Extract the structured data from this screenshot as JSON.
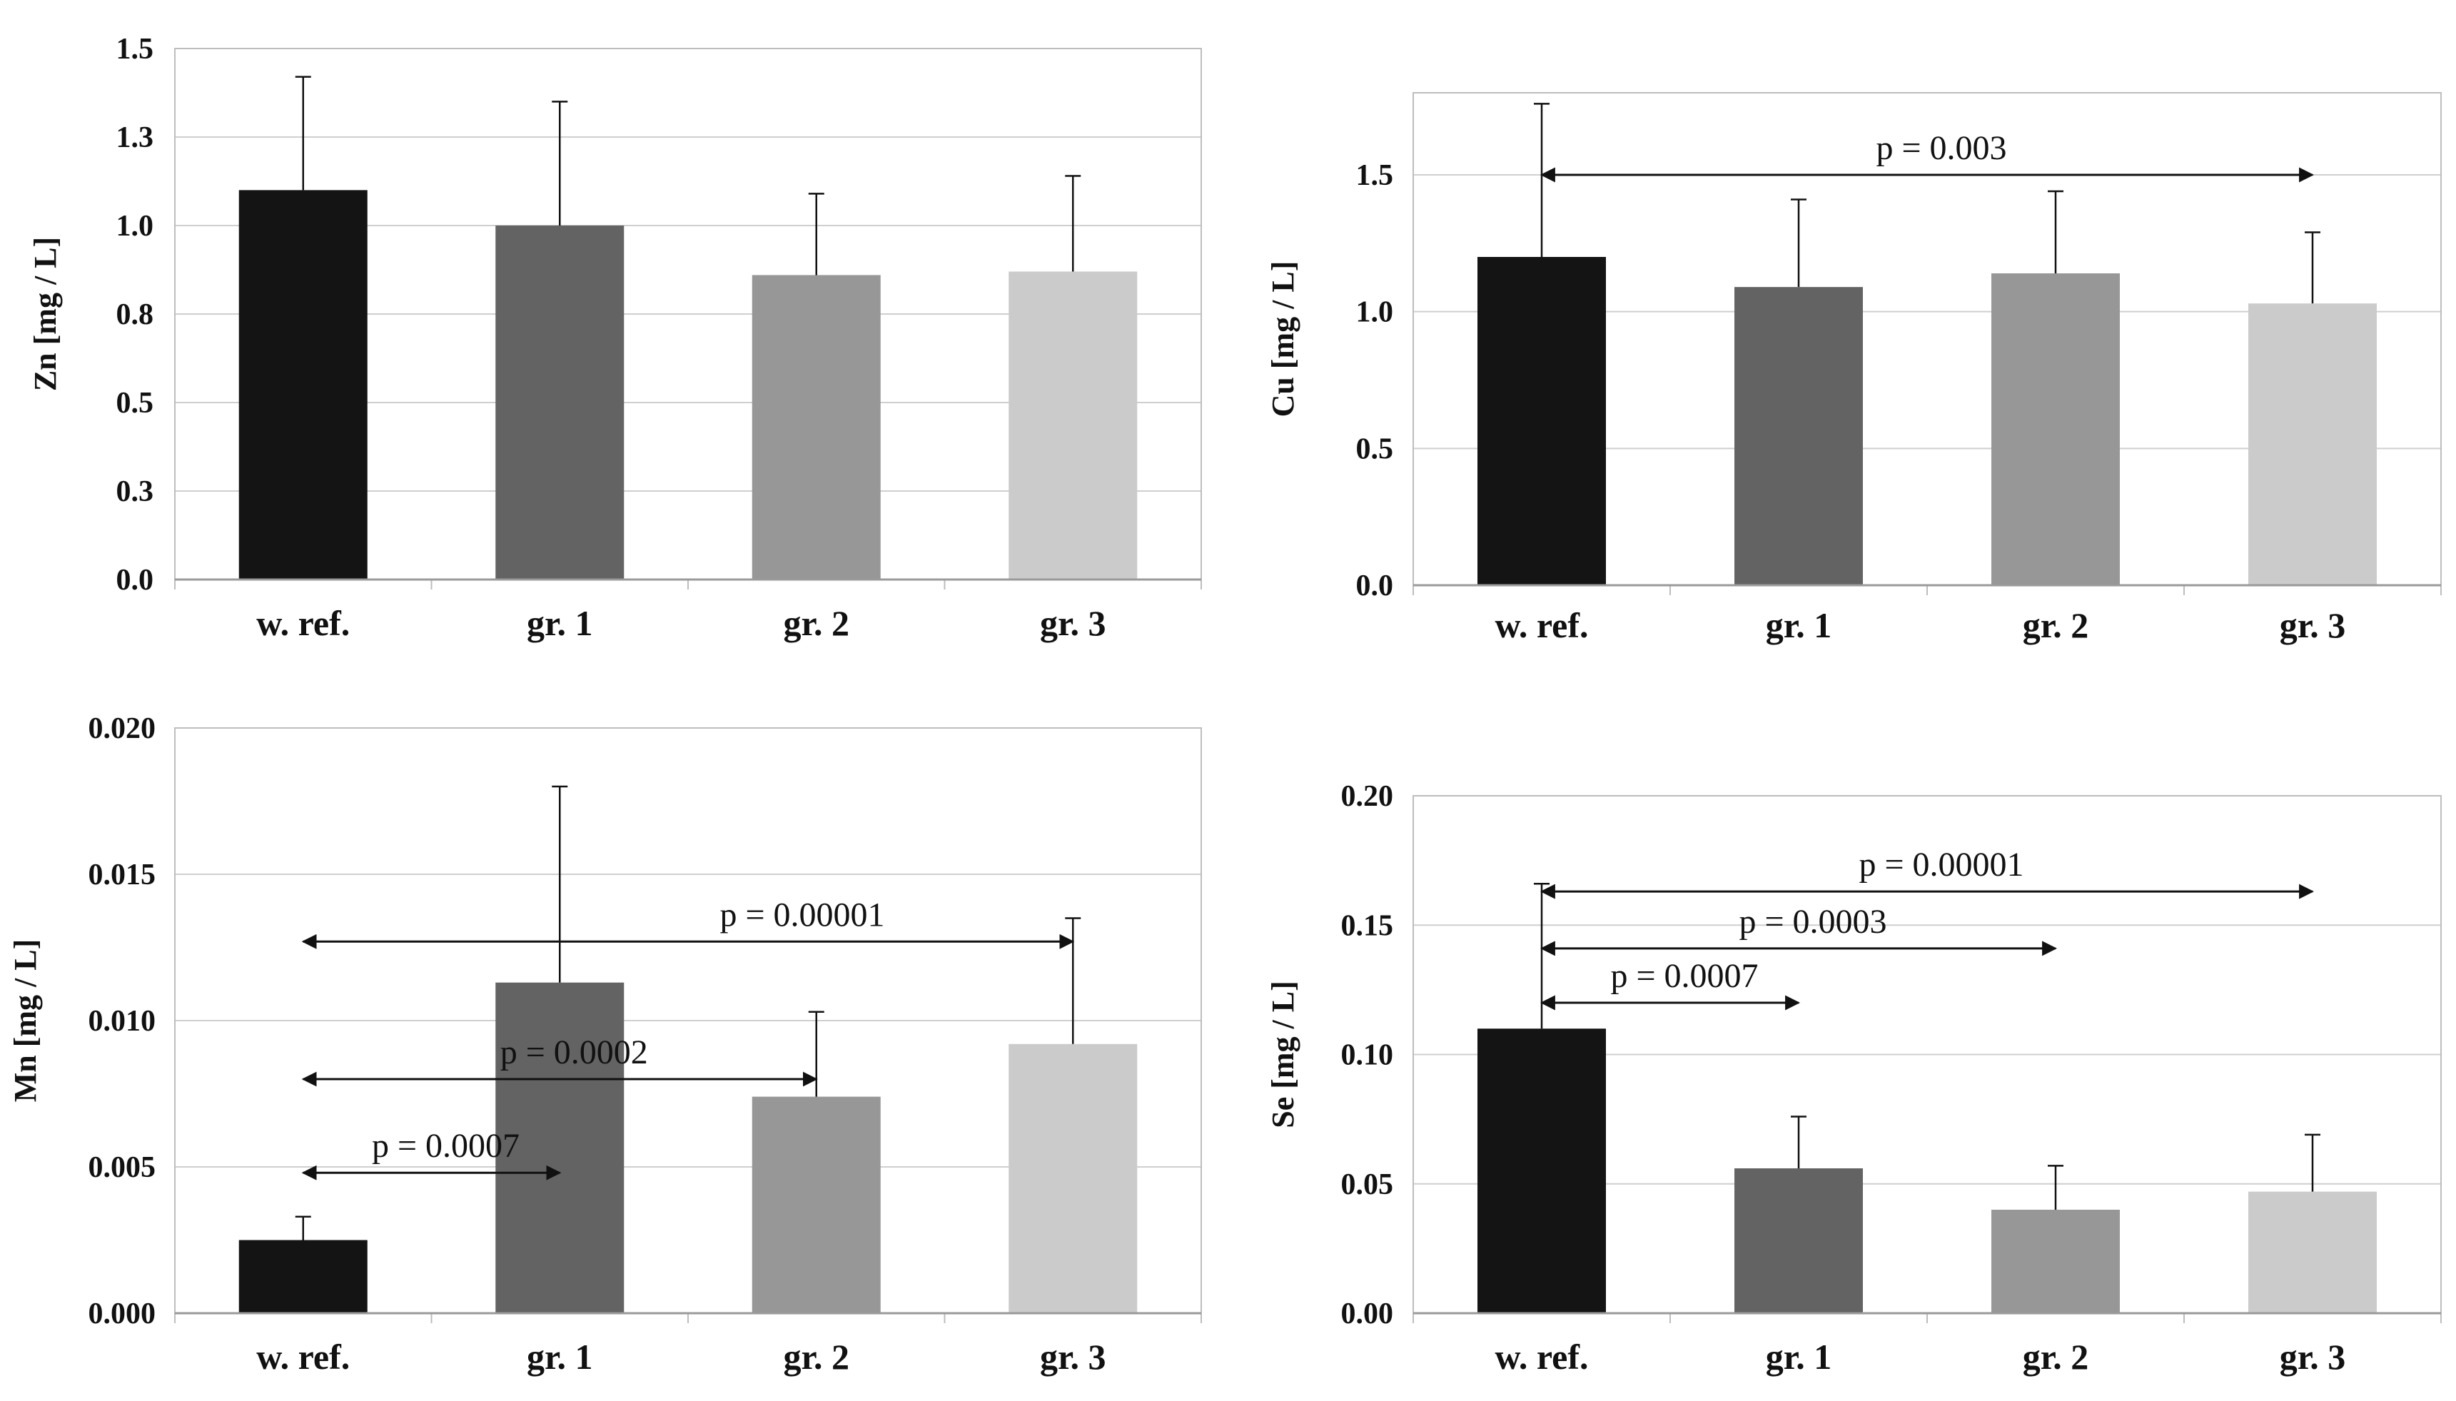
{
  "chart_data": [
    {
      "type": "bar",
      "id": "zn",
      "ylabel": "Zn [mg / L]",
      "categories": [
        "w. ref.",
        "gr. 1",
        "gr. 2",
        "gr. 3"
      ],
      "values": [
        1.1,
        1.0,
        0.86,
        0.87
      ],
      "error_upper": [
        1.42,
        1.35,
        1.09,
        1.14
      ],
      "ylim": [
        0,
        1.5
      ],
      "yticks": [
        0.0,
        0.25,
        0.5,
        0.75,
        1.0,
        1.25,
        1.5
      ],
      "ytick_labels": [
        "0.0",
        "0.3",
        "0.5",
        "0.8",
        "1.0",
        "1.3",
        "1.5"
      ],
      "grid": true,
      "colors": [
        "#141414",
        "#636363",
        "#979797",
        "#cbcbcb"
      ],
      "annotations": []
    },
    {
      "type": "bar",
      "id": "cu",
      "ylabel": "Cu [mg / L]",
      "categories": [
        "w. ref.",
        "gr. 1",
        "gr. 2",
        "gr. 3"
      ],
      "values": [
        1.2,
        1.09,
        1.14,
        1.03
      ],
      "error_upper": [
        1.76,
        1.41,
        1.44,
        1.29
      ],
      "ylim": [
        0,
        1.8
      ],
      "yticks": [
        0.0,
        0.5,
        1.0,
        1.5
      ],
      "ytick_labels": [
        "0.0",
        "0.5",
        "1.0",
        "1.5"
      ],
      "grid": true,
      "colors": [
        "#141414",
        "#636363",
        "#979797",
        "#cbcbcb"
      ],
      "annotations": [
        {
          "label": "p = 0.003",
          "from": 0,
          "to": 3,
          "y": 1.5
        }
      ]
    },
    {
      "type": "bar",
      "id": "mn",
      "ylabel": "Mn [mg / L]",
      "categories": [
        "w. ref.",
        "gr. 1",
        "gr. 2",
        "gr. 3"
      ],
      "values": [
        0.0025,
        0.0113,
        0.0074,
        0.0092
      ],
      "error_upper": [
        0.0033,
        0.018,
        0.0103,
        0.0135
      ],
      "ylim": [
        0,
        0.02
      ],
      "yticks": [
        0.0,
        0.005,
        0.01,
        0.015,
        0.02
      ],
      "ytick_labels": [
        "0.000",
        "0.005",
        "0.010",
        "0.015",
        "0.020"
      ],
      "grid": true,
      "colors": [
        "#141414",
        "#636363",
        "#979797",
        "#cbcbcb"
      ],
      "annotations": [
        {
          "label": "p = 0.00001",
          "from": 0,
          "to": 3,
          "y": 0.0127
        },
        {
          "label": "p = 0.0002",
          "from": 0,
          "to": 2,
          "y": 0.008
        },
        {
          "label": "p = 0.0007",
          "from": 0,
          "to": 1,
          "y": 0.0048
        }
      ]
    },
    {
      "type": "bar",
      "id": "se",
      "ylabel": "Se [mg / L]",
      "categories": [
        "w. ref.",
        "gr. 1",
        "gr. 2",
        "gr. 3"
      ],
      "values": [
        0.11,
        0.056,
        0.04,
        0.047
      ],
      "error_upper": [
        0.166,
        0.076,
        0.057,
        0.069
      ],
      "ylim": [
        0,
        0.2
      ],
      "yticks": [
        0.0,
        0.05,
        0.1,
        0.15,
        0.2
      ],
      "ytick_labels": [
        "0.00",
        "0.05",
        "0.10",
        "0.15",
        "0.20"
      ],
      "grid": true,
      "colors": [
        "#141414",
        "#636363",
        "#979797",
        "#cbcbcb"
      ],
      "annotations": [
        {
          "label": "p = 0.00001",
          "from": 0,
          "to": 3,
          "y": 0.163
        },
        {
          "label": "p = 0.0003",
          "from": 0,
          "to": 2,
          "y": 0.141
        },
        {
          "label": "p = 0.0007",
          "from": 0,
          "to": 1,
          "y": 0.12
        }
      ]
    }
  ]
}
